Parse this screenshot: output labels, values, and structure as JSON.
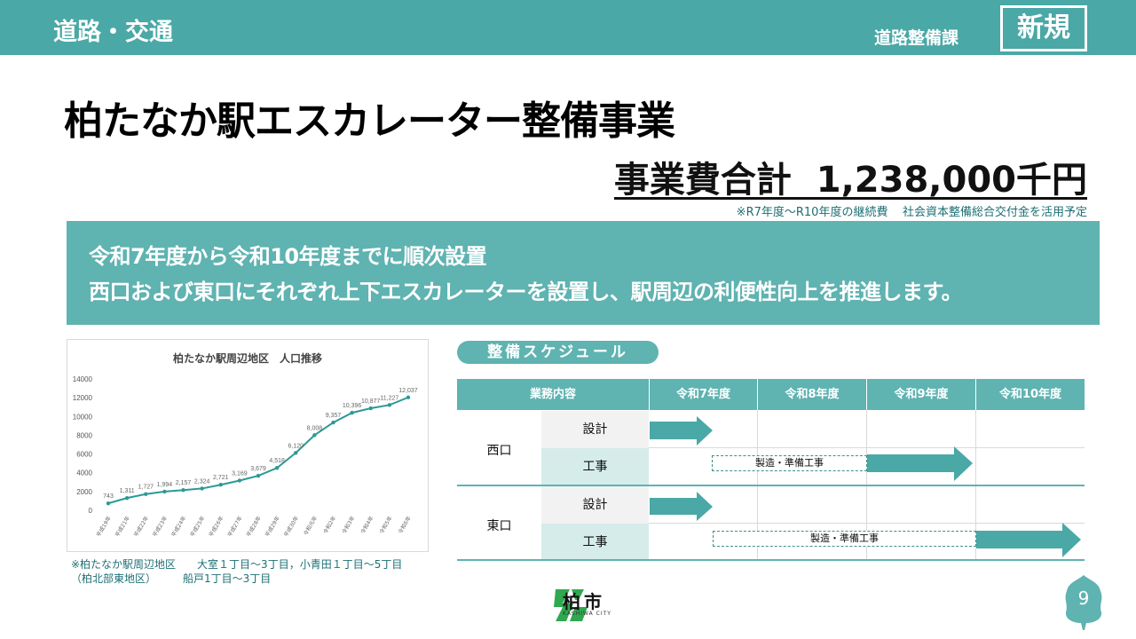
{
  "header": {
    "category": "道路・交通",
    "department": "道路整備課",
    "badge": "新規"
  },
  "title": "柏たなか駅エスカレーター整備事業",
  "cost": {
    "label": "事業費合計  1,238,000千円",
    "note_period": "※R7年度～R10年度の継続費",
    "note_funding": "社会資本整備総合交付金を活用予定"
  },
  "summary": {
    "line1": "令和7年度から令和10年度までに順次設置",
    "line2": "西口および東口にそれぞれ上下エスカレーターを設置し、駅周辺の利便性向上を推進します。"
  },
  "chart_data": {
    "type": "line",
    "title": "柏たなか駅周辺地区　人口推移",
    "categories": [
      "平成19年",
      "平成21年",
      "平成22年",
      "平成23年",
      "平成24年",
      "平成25年",
      "平成26年",
      "平成27年",
      "平成28年",
      "平成29年",
      "平成30年",
      "令和元年",
      "令和2年",
      "令和3年",
      "令和4年",
      "令和5年",
      "令和6年"
    ],
    "values": [
      743,
      1311,
      1727,
      1994,
      2157,
      2324,
      2721,
      3169,
      3679,
      4518,
      6120,
      8008,
      9357,
      10396,
      10877,
      11227,
      12037
    ],
    "value_labels": [
      "743",
      "1,311",
      "1,727",
      "1,994",
      "2,157",
      "2,324",
      "2,721",
      "3,169",
      "3,679",
      "4,518",
      "6,120",
      "8,008",
      "9,357",
      "10,396",
      "10,877",
      "11,227",
      "12,037"
    ],
    "y_ticks": [
      "0",
      "2000",
      "4000",
      "6000",
      "8000",
      "10000",
      "12000",
      "14000"
    ],
    "ylim": [
      0,
      14000
    ],
    "grid": false,
    "color": "#2b9a96"
  },
  "chart_note": {
    "line1": "※柏たなか駅周辺地区　　大室１丁目～3丁目，小青田１丁目～5丁目",
    "line2": "（柏北部東地区）　　　船戸1丁目～3丁目"
  },
  "schedule": {
    "pill": "整備スケジュール",
    "header_task": "業務内容",
    "years": [
      "令和7年度",
      "令和8年度",
      "令和9年度",
      "令和10年度"
    ],
    "west": "西口",
    "east": "東口",
    "design": "設計",
    "works": "工事",
    "prep_label": "製造・準備工事",
    "arrow_color": "#4aa8a6"
  },
  "footer": {
    "logo_name": "柏市",
    "logo_sub": "KASHIWA CITY",
    "page_number": "9",
    "logo_color": "#2fa84f"
  }
}
